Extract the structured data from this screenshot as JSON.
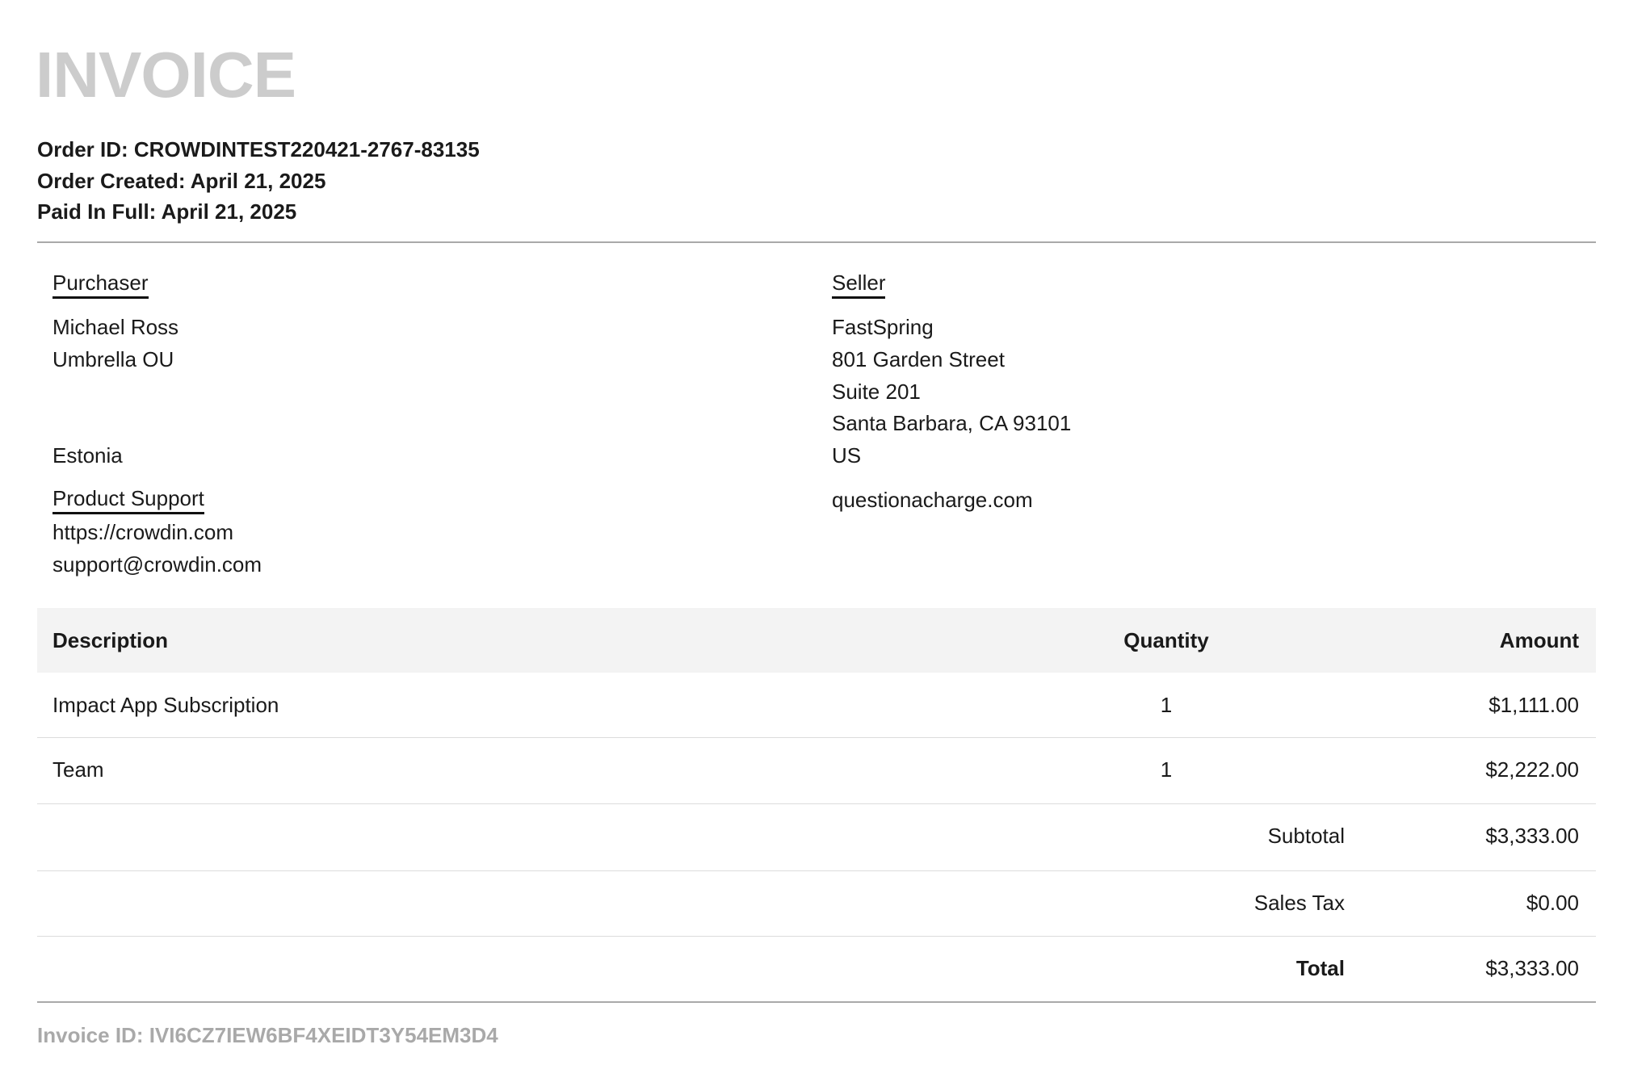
{
  "title": "INVOICE",
  "order": {
    "id_line": "Order ID: CROWDINTEST220421-2767-83135",
    "created_line": "Order Created: April 21, 2025",
    "paid_line": "Paid In Full: April 21, 2025"
  },
  "purchaser": {
    "heading": "Purchaser",
    "lines": [
      "Michael Ross",
      "Umbrella OU",
      "Estonia"
    ],
    "support_heading": "Product Support",
    "support_url": "https://crowdin.com",
    "support_email": "support@crowdin.com"
  },
  "seller": {
    "heading": "Seller",
    "lines": [
      "FastSpring",
      "801 Garden Street",
      "Suite 201",
      "Santa Barbara, CA 93101",
      "US"
    ],
    "website": "questionacharge.com"
  },
  "table": {
    "headers": {
      "description": "Description",
      "quantity": "Quantity",
      "amount": "Amount"
    },
    "rows": [
      {
        "description": "Impact App Subscription",
        "quantity": "1",
        "amount": "$1,111.00"
      },
      {
        "description": "Team",
        "quantity": "1",
        "amount": "$2,222.00"
      }
    ],
    "subtotal": {
      "label": "Subtotal",
      "value": "$3,333.00"
    },
    "tax": {
      "label": "Sales Tax",
      "value": "$0.00"
    },
    "total": {
      "label": "Total",
      "value": "$3,333.00"
    }
  },
  "invoice_id": "Invoice ID: IVI6CZ7IEW6BF4XEIDT3Y54EM3D4"
}
